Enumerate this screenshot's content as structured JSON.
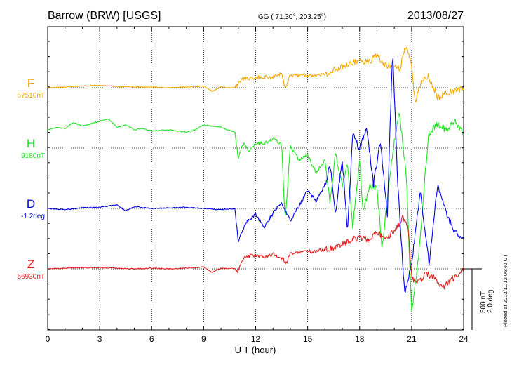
{
  "chart_data": {
    "type": "line",
    "title": "Barrow (BRW)  [USGS]",
    "coords": "GG ( 71.30°, 203.25°)",
    "date": "2013/08/27",
    "xlabel": "U T (hour)",
    "xlim": [
      0,
      24
    ],
    "xticks": [
      "0",
      "3",
      "6",
      "9",
      "12",
      "15",
      "18",
      "21",
      "24"
    ],
    "grid": true,
    "scale_bar": [
      "500 nT",
      "2.0 deg"
    ],
    "footer": "Plotted at 2013/11/12 06:40 UT",
    "series": [
      {
        "name": "F",
        "baseline": "57510nT",
        "color": "#f5a800",
        "points": [
          [
            0,
            0
          ],
          [
            1,
            5
          ],
          [
            2,
            15
          ],
          [
            3,
            20
          ],
          [
            4,
            10
          ],
          [
            5,
            5
          ],
          [
            6,
            5
          ],
          [
            7,
            0
          ],
          [
            8,
            5
          ],
          [
            9,
            15
          ],
          [
            9.5,
            -30
          ],
          [
            10,
            5
          ],
          [
            10.5,
            0
          ],
          [
            10.8,
            0
          ],
          [
            11.2,
            70
          ],
          [
            11.7,
            80
          ],
          [
            12,
            85
          ],
          [
            12.5,
            90
          ],
          [
            13,
            85
          ],
          [
            13.5,
            120
          ],
          [
            13.7,
            0
          ],
          [
            14,
            100
          ],
          [
            15,
            100
          ],
          [
            16,
            110
          ],
          [
            16.5,
            145
          ],
          [
            17,
            175
          ],
          [
            17.5,
            200
          ],
          [
            18,
            215
          ],
          [
            18.5,
            210
          ],
          [
            19,
            260
          ],
          [
            19.5,
            185
          ],
          [
            20,
            170
          ],
          [
            20.3,
            150
          ],
          [
            20.7,
            350
          ],
          [
            21,
            165
          ],
          [
            21.2,
            -120
          ],
          [
            21.6,
            80
          ],
          [
            22,
            90
          ],
          [
            22.5,
            -80
          ],
          [
            23,
            -40
          ],
          [
            23.5,
            -30
          ],
          [
            24,
            0
          ]
        ]
      },
      {
        "name": "H",
        "baseline": "9180nT",
        "color": "#1ee61e",
        "points": [
          [
            0,
            150
          ],
          [
            0.5,
            170
          ],
          [
            1,
            160
          ],
          [
            1.5,
            210
          ],
          [
            2,
            180
          ],
          [
            2.5,
            200
          ],
          [
            3,
            220
          ],
          [
            3.5,
            240
          ],
          [
            4,
            170
          ],
          [
            4.5,
            190
          ],
          [
            5,
            150
          ],
          [
            5.5,
            160
          ],
          [
            6,
            140
          ],
          [
            7,
            150
          ],
          [
            8,
            130
          ],
          [
            8.5,
            150
          ],
          [
            9,
            190
          ],
          [
            10,
            170
          ],
          [
            10.8,
            130
          ],
          [
            11,
            -80
          ],
          [
            11.3,
            40
          ],
          [
            11.6,
            -20
          ],
          [
            12,
            40
          ],
          [
            12.5,
            40
          ],
          [
            13,
            80
          ],
          [
            13.5,
            30
          ],
          [
            13.7,
            -600
          ],
          [
            14,
            10
          ],
          [
            14.5,
            -100
          ],
          [
            15,
            -60
          ],
          [
            15.5,
            -200
          ],
          [
            16,
            -100
          ],
          [
            16.3,
            -450
          ],
          [
            16.6,
            -50
          ],
          [
            17,
            -300
          ],
          [
            17.3,
            -120
          ],
          [
            17.6,
            -650
          ],
          [
            18,
            -100
          ],
          [
            18.2,
            -520
          ],
          [
            18.6,
            -300
          ],
          [
            19,
            -340
          ],
          [
            19.3,
            -820
          ],
          [
            19.6,
            -400
          ],
          [
            20,
            50
          ],
          [
            20.3,
            300
          ],
          [
            20.7,
            -250
          ],
          [
            21,
            -1350
          ],
          [
            21.4,
            -900
          ],
          [
            21.7,
            -350
          ],
          [
            22,
            120
          ],
          [
            22.5,
            200
          ],
          [
            23,
            150
          ],
          [
            23.5,
            220
          ],
          [
            24,
            120
          ]
        ]
      },
      {
        "name": "D",
        "baseline": "-1.2deg",
        "color": "#0000e6",
        "points": [
          [
            0,
            0
          ],
          [
            1,
            -10
          ],
          [
            2,
            5
          ],
          [
            3,
            10
          ],
          [
            4,
            30
          ],
          [
            4.5,
            -20
          ],
          [
            5,
            15
          ],
          [
            6,
            0
          ],
          [
            7,
            5
          ],
          [
            8,
            10
          ],
          [
            9,
            0
          ],
          [
            10,
            -10
          ],
          [
            10.8,
            0
          ],
          [
            11,
            -260
          ],
          [
            11.5,
            -100
          ],
          [
            12,
            -50
          ],
          [
            12.5,
            -150
          ],
          [
            13,
            -40
          ],
          [
            13.5,
            50
          ],
          [
            14,
            -100
          ],
          [
            14.5,
            20
          ],
          [
            15,
            150
          ],
          [
            15.5,
            60
          ],
          [
            16,
            200
          ],
          [
            16.3,
            350
          ],
          [
            16.6,
            -50
          ],
          [
            17,
            400
          ],
          [
            17.3,
            -200
          ],
          [
            17.6,
            600
          ],
          [
            18,
            500
          ],
          [
            18.4,
            650
          ],
          [
            18.8,
            200
          ],
          [
            19.2,
            550
          ],
          [
            19.6,
            -50
          ],
          [
            19.9,
            1300
          ],
          [
            20.2,
            200
          ],
          [
            20.6,
            -700
          ],
          [
            21,
            -450
          ],
          [
            21.5,
            150
          ],
          [
            22,
            -450
          ],
          [
            22.5,
            200
          ],
          [
            23,
            -30
          ],
          [
            23.5,
            -200
          ],
          [
            24,
            -250
          ]
        ]
      },
      {
        "name": "Z",
        "baseline": "56930nT",
        "color": "#e61e1e",
        "points": [
          [
            0,
            0
          ],
          [
            1,
            5
          ],
          [
            2,
            10
          ],
          [
            3,
            10
          ],
          [
            4,
            5
          ],
          [
            5,
            0
          ],
          [
            6,
            5
          ],
          [
            7,
            0
          ],
          [
            8,
            5
          ],
          [
            9,
            15
          ],
          [
            9.5,
            -30
          ],
          [
            10,
            5
          ],
          [
            10.8,
            0
          ],
          [
            11,
            -20
          ],
          [
            11.3,
            90
          ],
          [
            11.8,
            110
          ],
          [
            12.5,
            100
          ],
          [
            13,
            120
          ],
          [
            13.6,
            80
          ],
          [
            13.7,
            30
          ],
          [
            14,
            120
          ],
          [
            15,
            140
          ],
          [
            16,
            155
          ],
          [
            16.5,
            170
          ],
          [
            17,
            205
          ],
          [
            17.5,
            240
          ],
          [
            18,
            255
          ],
          [
            18.5,
            240
          ],
          [
            19,
            290
          ],
          [
            19.5,
            260
          ],
          [
            20,
            300
          ],
          [
            20.5,
            420
          ],
          [
            20.8,
            320
          ],
          [
            21,
            -60
          ],
          [
            21.3,
            -120
          ],
          [
            21.8,
            -40
          ],
          [
            22.3,
            -70
          ],
          [
            22.8,
            -150
          ],
          [
            23.3,
            -90
          ],
          [
            24,
            0
          ]
        ]
      }
    ]
  }
}
